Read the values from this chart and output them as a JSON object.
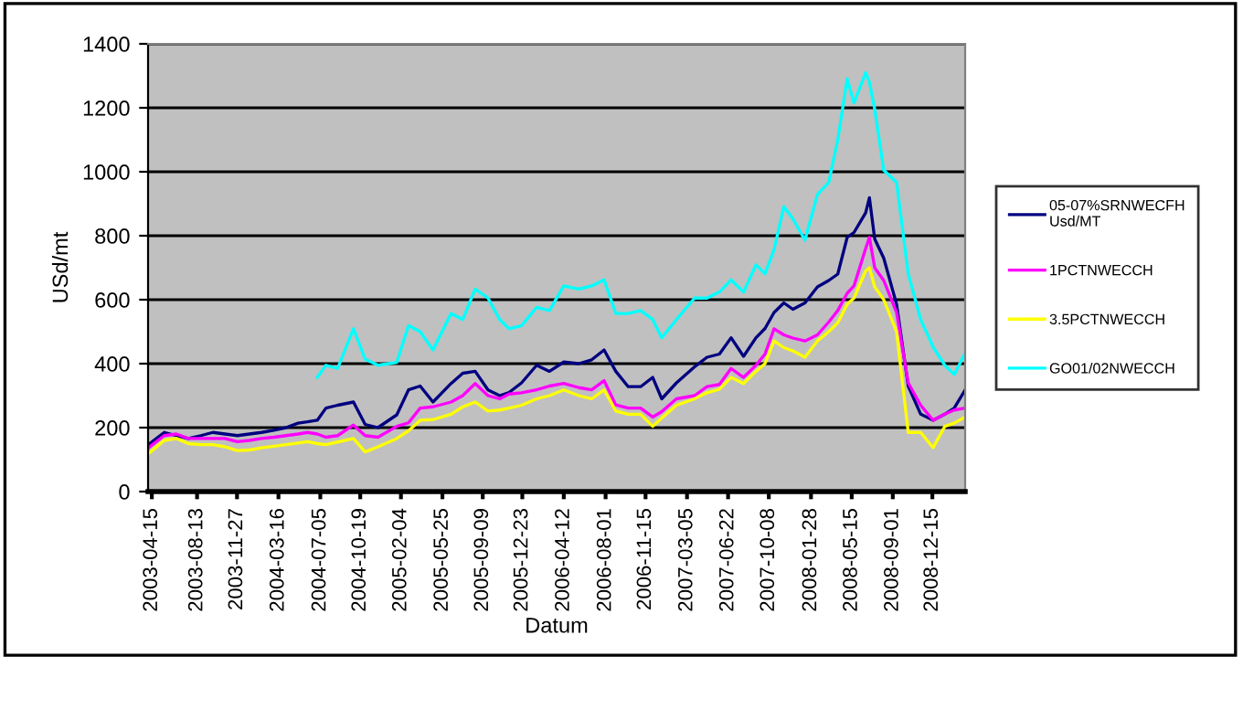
{
  "chart_data": {
    "type": "line",
    "xlabel": "Datum",
    "ylabel": "USd/mt",
    "x": [
      "2003-04-06",
      "2003-05-18",
      "2003-06-19",
      "2003-07-21",
      "2003-08-23",
      "2003-09-24",
      "2003-10-26",
      "2003-11-28",
      "2003-12-30",
      "2004-01-31",
      "2004-03-04",
      "2004-04-05",
      "2004-05-07",
      "2004-06-01",
      "2004-06-27",
      "2004-07-20",
      "2004-08-20",
      "2004-10-01",
      "2004-11-01",
      "2004-12-05",
      "2005-01-24",
      "2005-02-24",
      "2005-03-27",
      "2005-04-30",
      "2005-06-17",
      "2005-07-18",
      "2005-08-20",
      "2005-09-23",
      "2005-10-24",
      "2005-11-18",
      "2005-12-21",
      "2006-01-30",
      "2006-03-05",
      "2006-04-12",
      "2006-05-22",
      "2006-06-25",
      "2006-07-28",
      "2006-08-28",
      "2006-09-30",
      "2006-11-02",
      "2006-12-04",
      "2006-12-28",
      "2007-02-05",
      "2007-03-25",
      "2007-04-27",
      "2007-05-30",
      "2007-06-30",
      "2007-08-02",
      "2007-09-04",
      "2007-09-28",
      "2007-10-22",
      "2007-11-17",
      "2007-12-11",
      "2008-01-12",
      "2008-02-14",
      "2008-03-15",
      "2008-04-08",
      "2008-05-03",
      "2008-05-21",
      "2008-06-21",
      "2008-07-01",
      "2008-07-15",
      "2008-08-08",
      "2008-09-11",
      "2008-10-12",
      "2008-11-14",
      "2008-12-17",
      "2009-01-17",
      "2009-02-11",
      "2009-03-12"
    ],
    "series": [
      {
        "name": "05-07%SRNWECFH\nUsd/MT",
        "color": "#000080",
        "values": [
          147,
          185,
          175,
          166,
          175,
          185,
          180,
          175,
          180,
          185,
          192,
          200,
          214,
          218,
          223,
          261,
          270,
          280,
          210,
          200,
          240,
          318,
          330,
          280,
          338,
          370,
          376,
          318,
          300,
          310,
          340,
          395,
          376,
          405,
          400,
          412,
          443,
          376,
          328,
          328,
          357,
          290,
          340,
          390,
          420,
          430,
          481,
          423,
          481,
          510,
          560,
          590,
          570,
          590,
          640,
          660,
          680,
          795,
          810,
          872,
          919,
          790,
          730,
          586,
          330,
          242,
          223,
          242,
          261,
          318
        ]
      },
      {
        "name": "1PCTNWECCH",
        "color": "#ff00ff",
        "values": [
          137,
          175,
          180,
          166,
          166,
          166,
          166,
          156,
          160,
          166,
          170,
          175,
          180,
          185,
          180,
          170,
          175,
          208,
          175,
          170,
          204,
          215,
          261,
          265,
          280,
          300,
          338,
          300,
          290,
          305,
          309,
          318,
          330,
          338,
          325,
          318,
          347,
          271,
          261,
          261,
          233,
          250,
          290,
          300,
          328,
          335,
          385,
          357,
          395,
          430,
          509,
          490,
          480,
          471,
          490,
          530,
          566,
          620,
          643,
          760,
          795,
          700,
          660,
          560,
          340,
          270,
          223,
          242,
          255,
          261
        ]
      },
      {
        "name": "3.5PCTNWECCH",
        "color": "#ffff00",
        "values": [
          118,
          160,
          166,
          150,
          147,
          147,
          140,
          128,
          130,
          137,
          142,
          147,
          152,
          156,
          150,
          147,
          155,
          166,
          124,
          140,
          166,
          190,
          223,
          225,
          242,
          265,
          280,
          252,
          255,
          261,
          270,
          290,
          300,
          318,
          300,
          290,
          318,
          252,
          242,
          242,
          204,
          230,
          270,
          290,
          309,
          320,
          357,
          338,
          376,
          400,
          471,
          450,
          440,
          420,
          471,
          500,
          528,
          586,
          605,
          690,
          700,
          640,
          600,
          500,
          185,
          185,
          137,
          204,
          214,
          233
        ]
      },
      {
        "name": "GO01/02NWECCH",
        "color": "#00ffff",
        "values": [
          null,
          null,
          null,
          null,
          null,
          null,
          null,
          null,
          null,
          null,
          null,
          null,
          null,
          null,
          357,
          395,
          385,
          509,
          414,
          395,
          404,
          519,
          500,
          443,
          557,
          538,
          633,
          605,
          538,
          509,
          519,
          576,
          566,
          643,
          633,
          643,
          662,
          557,
          557,
          566,
          538,
          481,
          538,
          605,
          605,
          624,
          662,
          624,
          709,
          681,
          757,
          891,
          853,
          786,
          929,
          967,
          1100,
          1291,
          1215,
          1310,
          1280,
          1196,
          1005,
          967,
          681,
          538,
          452,
          395,
          366,
          433
        ]
      }
    ],
    "xlim": [
      "2003-04-05",
      "2009-03-12"
    ],
    "xticks": [
      {
        "value": "2003-04-15",
        "label": "2003-04-15"
      },
      {
        "value": "2003-08-13",
        "label": "2003-08-13"
      },
      {
        "value": "2003-11-27",
        "label": "2003-11-27"
      },
      {
        "value": "2004-03-16",
        "label": "2004-03-16"
      },
      {
        "value": "2004-07-05",
        "label": "2004-07-05"
      },
      {
        "value": "2004-10-19",
        "label": "2004-10-19"
      },
      {
        "value": "2005-02-04",
        "label": "2005-02-04"
      },
      {
        "value": "2005-05-25",
        "label": "2005-05-25"
      },
      {
        "value": "2005-09-09",
        "label": "2005-09-09"
      },
      {
        "value": "2005-12-23",
        "label": "2005-12-23"
      },
      {
        "value": "2006-04-12",
        "label": "2006-04-12"
      },
      {
        "value": "2006-08-01",
        "label": "2006-08-01"
      },
      {
        "value": "2006-11-15",
        "label": "2006-11-15"
      },
      {
        "value": "2007-03-05",
        "label": "2007-03-05"
      },
      {
        "value": "2007-06-22",
        "label": "2007-06-22"
      },
      {
        "value": "2007-10-08",
        "label": "2007-10-08"
      },
      {
        "value": "2008-01-28",
        "label": "2008-01-28"
      },
      {
        "value": "2008-05-15",
        "label": "2008-05-15"
      },
      {
        "value": "2008-09-01",
        "label": "2008-09-01"
      },
      {
        "value": "2008-12-15",
        "label": "2008-12-15"
      }
    ],
    "ylim": [
      0,
      1400
    ],
    "yticks": [
      0,
      200,
      400,
      600,
      800,
      1000,
      1200,
      1400
    ],
    "grid": "y",
    "legend": "right"
  }
}
